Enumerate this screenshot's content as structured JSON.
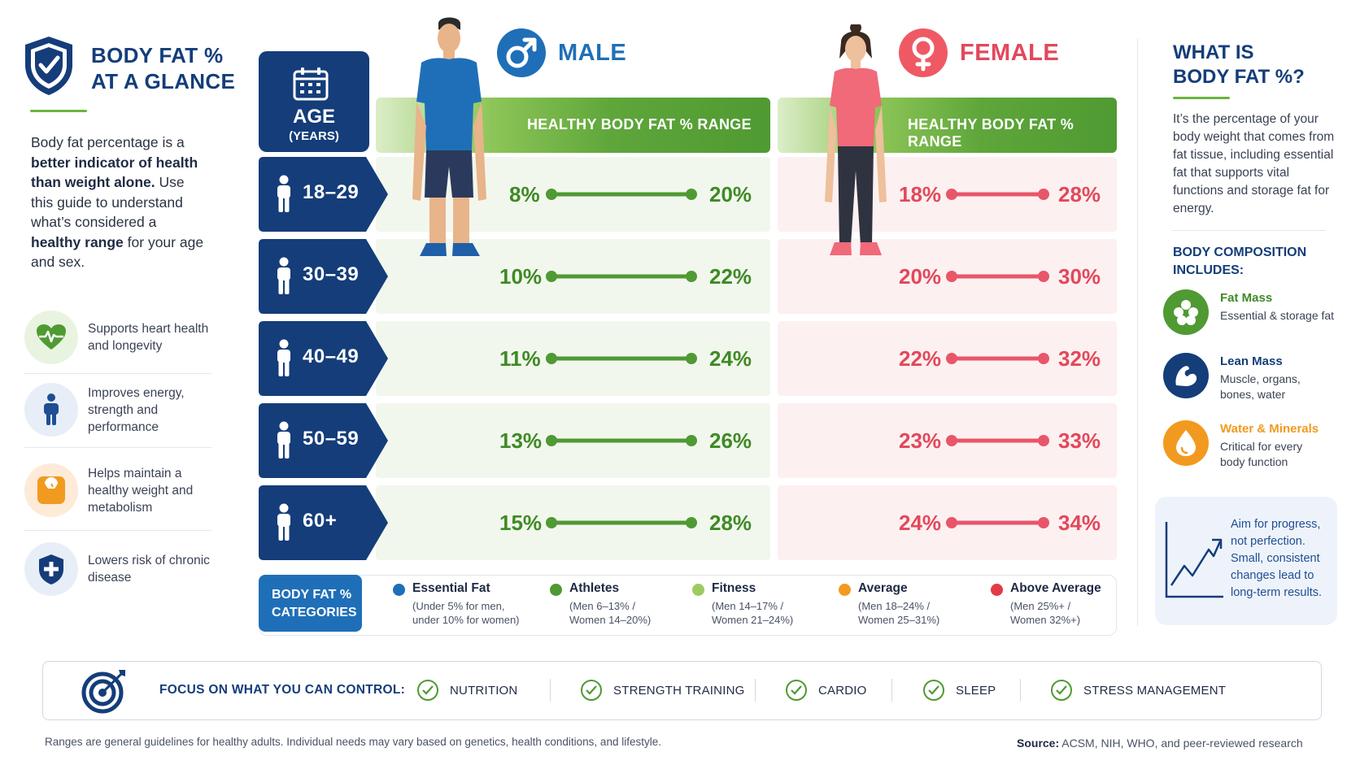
{
  "header": {
    "title_line1": "BODY FAT %",
    "title_line2": "AT A GLANCE",
    "intro_plain1": "Body fat percentage is a ",
    "intro_bold1": "better indicator of health than weight alone.",
    "intro_plain2": " Use this guide to understand what’s considered a ",
    "intro_bold2": "healthy range",
    "intro_plain3": " for your age and sex."
  },
  "benefits": [
    {
      "text": "Supports heart health and longevity",
      "icon": "heart-pulse-icon"
    },
    {
      "text": "Improves energy, strength and performance",
      "icon": "person-icon"
    },
    {
      "text": "Helps maintain a healthy weight and metabolism",
      "icon": "scale-icon"
    },
    {
      "text": "Lowers risk of chronic disease",
      "icon": "shield-plus-icon"
    }
  ],
  "age_header": {
    "label": "AGE",
    "sub": "(YEARS)"
  },
  "male": {
    "label": "MALE",
    "range_header": "HEALTHY BODY FAT % RANGE",
    "color": "#3f8a24"
  },
  "female": {
    "label": "FEMALE",
    "range_header": "HEALTHY BODY FAT % RANGE",
    "color": "#e2485b"
  },
  "rows": [
    {
      "age": "18–29",
      "male_min": "8%",
      "male_max": "20%",
      "female_min": "18%",
      "female_max": "28%"
    },
    {
      "age": "30–39",
      "male_min": "10%",
      "male_max": "22%",
      "female_min": "20%",
      "female_max": "30%"
    },
    {
      "age": "40–49",
      "male_min": "11%",
      "male_max": "24%",
      "female_min": "22%",
      "female_max": "32%"
    },
    {
      "age": "50–59",
      "male_min": "13%",
      "male_max": "26%",
      "female_min": "23%",
      "female_max": "33%"
    },
    {
      "age": "60+",
      "male_min": "15%",
      "male_max": "28%",
      "female_min": "24%",
      "female_max": "34%"
    }
  ],
  "categories": {
    "tag_line1": "BODY FAT %",
    "tag_line2": "CATEGORIES",
    "items": [
      {
        "name": "Essential Fat",
        "line1": "(Under 5% for men,",
        "line2": "under 10% for women)",
        "color": "#1f6fb8"
      },
      {
        "name": "Athletes",
        "line1": "(Men 6–13% /",
        "line2": "Women 14–20%)",
        "color": "#4f9a32"
      },
      {
        "name": "Fitness",
        "line1": "(Men 14–17% /",
        "line2": "Women 21–24%)",
        "color": "#9dcb62"
      },
      {
        "name": "Average",
        "line1": "(Men 18–24% /",
        "line2": "Women 25–31%)",
        "color": "#f29a1f"
      },
      {
        "name": "Above Average",
        "line1": "(Men 25%+ /",
        "line2": "Women 32%+)",
        "color": "#e23a48"
      }
    ]
  },
  "what_is": {
    "title_line1": "WHAT IS",
    "title_line2": "BODY FAT %?",
    "description": "It’s the percentage of your body weight that comes from fat tissue, including essential fat that supports vital functions and storage fat for energy.",
    "composition_title_line1": "BODY COMPOSITION",
    "composition_title_line2": "INCLUDES:",
    "composition": [
      {
        "name": "Fat Mass",
        "line1": "Essential & storage fat",
        "line2": "",
        "color": "#4f9a32"
      },
      {
        "name": "Lean Mass",
        "line1": "Muscle, organs,",
        "line2": "bones, water",
        "color": "#143d7a"
      },
      {
        "name": "Water & Minerals",
        "line1": "Critical for every",
        "line2": "body function",
        "color": "#f29a1f"
      }
    ],
    "aim_text": "Aim for progress, not perfection. Small, consistent changes lead to long-term results."
  },
  "focus": {
    "label": "FOCUS ON WHAT YOU CAN CONTROL:",
    "items": [
      "NUTRITION",
      "STRENGTH TRAINING",
      "CARDIO",
      "SLEEP",
      "STRESS MANAGEMENT"
    ]
  },
  "footer": {
    "note": "Ranges are general guidelines for healthy adults. Individual needs may vary based on genetics, health conditions, and lifestyle.",
    "source_label": "Source:",
    "source_text": " ACSM, NIH, WHO, and peer-reviewed research"
  }
}
